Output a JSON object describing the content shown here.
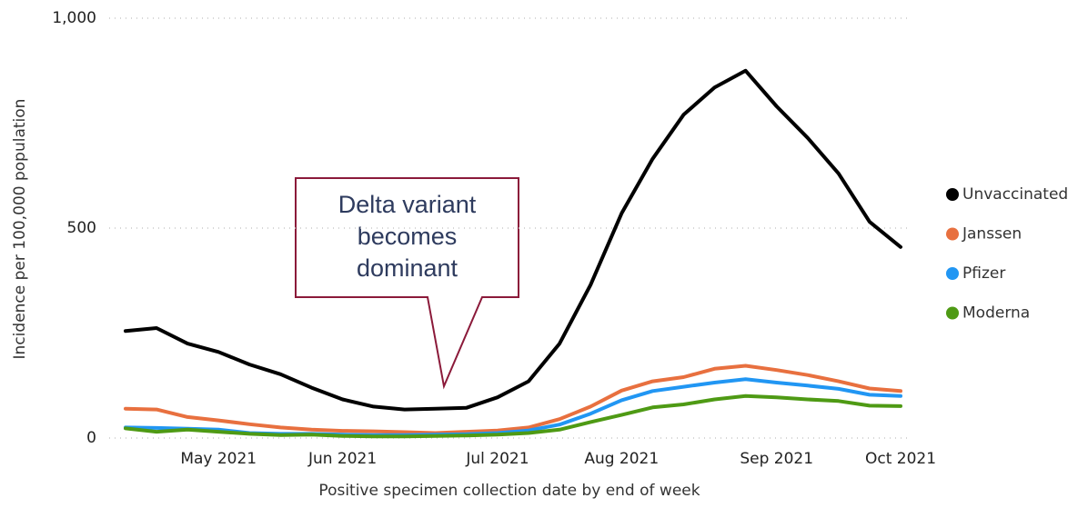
{
  "chart_data": {
    "type": "line",
    "y_label": "Incidence per 100,000 population",
    "x_label": "Positive specimen collection date by end of week",
    "annotation": "Delta variant becomes dominant",
    "categories": [
      null,
      null,
      null,
      "May 2021",
      null,
      null,
      null,
      "Jun 2021",
      null,
      null,
      null,
      null,
      "Jul 2021",
      null,
      null,
      null,
      "Aug 2021",
      null,
      null,
      null,
      null,
      "Sep 2021",
      null,
      null,
      null,
      "Oct 2021"
    ],
    "series": [
      {
        "name": "Unvaccinated",
        "color": "#000000",
        "values": [
          255,
          262,
          225,
          205,
          175,
          152,
          120,
          92,
          75,
          68,
          70,
          72,
          97,
          135,
          225,
          365,
          535,
          665,
          770,
          835,
          875,
          790,
          715,
          630,
          515,
          455
        ]
      },
      {
        "name": "Janssen",
        "color": "#e8703f",
        "values": [
          70,
          68,
          50,
          42,
          33,
          25,
          20,
          17,
          16,
          14,
          12,
          15,
          18,
          25,
          45,
          75,
          113,
          135,
          145,
          165,
          172,
          162,
          150,
          135,
          118,
          112
        ]
      },
      {
        "name": "Pfizer",
        "color": "#2196f3",
        "values": [
          25,
          24,
          22,
          20,
          12,
          10,
          10,
          8,
          7,
          7,
          8,
          9,
          12,
          18,
          32,
          58,
          90,
          112,
          122,
          132,
          140,
          132,
          125,
          117,
          103,
          100
        ]
      },
      {
        "name": "Moderna",
        "color": "#4e9a14",
        "values": [
          23,
          15,
          20,
          15,
          10,
          7,
          8,
          5,
          4,
          4,
          5,
          6,
          8,
          12,
          20,
          38,
          55,
          73,
          80,
          92,
          100,
          97,
          92,
          88,
          77,
          76
        ]
      }
    ],
    "ylim": [
      0,
      1000
    ],
    "yticks": [
      0,
      500,
      {
        "value": 1000,
        "label": "1,000"
      }
    ],
    "grid": true,
    "legend": "right"
  }
}
